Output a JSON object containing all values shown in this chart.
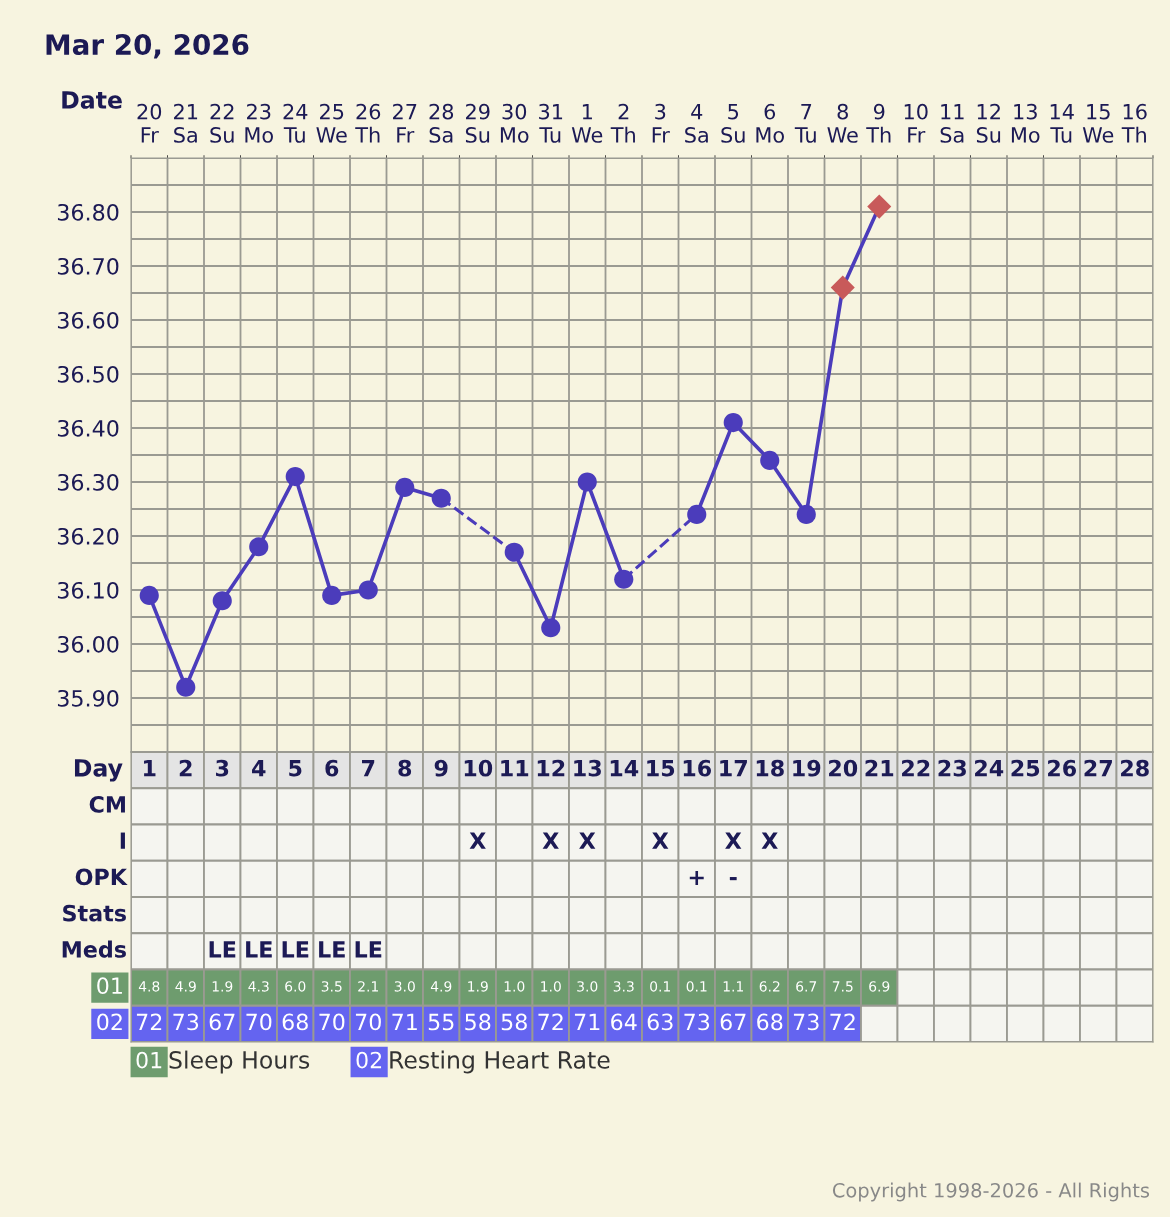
{
  "chart_data": [
    {
      "type": "line",
      "title": "Mar 20, 2026",
      "xlabel": "Date",
      "categories": [
        "20\nFr",
        "21\nSa",
        "22\nSu",
        "23\nMo",
        "24\nTu",
        "25\nWe",
        "26\nTh",
        "27\nFr",
        "28\nSa",
        "29\nSu",
        "30\nMo",
        "31\nTu",
        "1\nWe",
        "2\nTh",
        "3\nFr",
        "4\nSa",
        "5\nSu",
        "6\nMo",
        "7\nTu",
        "8\nWe",
        "9\nTh",
        "10\nFr",
        "11\nSa",
        "12\nSu",
        "13\nMo",
        "14\nTu",
        "15\nWe",
        "16\nTh"
      ],
      "series": [
        {
          "type": "line",
          "color": "#4b3cbb",
          "marker": "none",
          "line_style": "solid",
          "values": [
            36.09,
            35.92,
            36.08,
            36.18,
            36.31,
            36.09,
            36.1,
            36.29,
            36.27,
            null,
            36.17,
            36.03,
            36.3,
            36.12,
            null,
            36.24,
            36.41,
            36.34,
            36.24,
            36.66,
            36.81,
            null,
            null,
            null,
            null,
            null,
            null,
            null
          ]
        },
        {
          "type": "scatter",
          "color": "#4b3cbb",
          "marker": "circle",
          "values": [
            36.09,
            35.92,
            36.08,
            36.18,
            36.31,
            36.09,
            36.1,
            36.29,
            36.27,
            null,
            36.17,
            36.03,
            36.3,
            36.12,
            null,
            36.24,
            36.41,
            36.34,
            36.24,
            null,
            null,
            null,
            null,
            null,
            null,
            null,
            null,
            null
          ]
        },
        {
          "type": "scatter",
          "color": "#c85a5a",
          "marker": "diamond",
          "values": [
            null,
            null,
            null,
            null,
            null,
            null,
            null,
            null,
            null,
            null,
            null,
            null,
            null,
            null,
            null,
            null,
            null,
            null,
            null,
            36.66,
            36.81,
            null,
            null,
            null,
            null,
            null,
            null,
            null
          ]
        }
      ],
      "ylim": [
        35.8,
        36.9
      ],
      "yticks": [
        {
          "value": 35.8,
          "label": null
        },
        {
          "value": 35.85,
          "label": null
        },
        {
          "value": 35.9,
          "label": "35.90"
        },
        {
          "value": 35.95,
          "label": null
        },
        {
          "value": 36.0,
          "label": "36.00"
        },
        {
          "value": 36.05,
          "label": null
        },
        {
          "value": 36.1,
          "label": "36.10"
        },
        {
          "value": 36.15,
          "label": null
        },
        {
          "value": 36.2,
          "label": "36.20"
        },
        {
          "value": 36.25,
          "label": null
        },
        {
          "value": 36.3,
          "label": "36.30"
        },
        {
          "value": 36.35,
          "label": null
        },
        {
          "value": 36.4,
          "label": "36.40"
        },
        {
          "value": 36.45,
          "label": null
        },
        {
          "value": 36.5,
          "label": "36.50"
        },
        {
          "value": 36.55,
          "label": null
        },
        {
          "value": 36.6,
          "label": "36.60"
        },
        {
          "value": 36.65,
          "label": null
        },
        {
          "value": 36.7,
          "label": "36.70"
        },
        {
          "value": 36.75,
          "label": null
        },
        {
          "value": 36.8,
          "label": "36.80"
        },
        {
          "value": 36.85,
          "label": null
        },
        {
          "value": 36.9,
          "label": null
        }
      ],
      "grid": true,
      "legend": false,
      "annotations": [
        "Copyright 1998-2026 - All Rights"
      ]
    },
    {
      "type": "heatmap",
      "xlabel": "Day",
      "categories": [
        "1",
        "2",
        "3",
        "4",
        "5",
        "6",
        "7",
        "8",
        "9",
        "10",
        "11",
        "12",
        "13",
        "14",
        "15",
        "16",
        "17",
        "18",
        "19",
        "20",
        "21",
        "22",
        "23",
        "24",
        "25",
        "26",
        "27",
        "28"
      ],
      "y_categories": [
        "CM",
        "I",
        "OPK",
        "Stats",
        "Meds",
        "01",
        "02"
      ],
      "cells": [
        [
          null,
          null,
          null,
          null,
          null,
          null,
          null,
          null,
          null,
          null,
          null,
          null,
          null,
          null,
          null,
          null,
          null,
          null,
          null,
          null,
          null,
          null,
          null,
          null,
          null,
          null,
          null,
          null
        ],
        [
          null,
          null,
          null,
          null,
          null,
          null,
          null,
          null,
          null,
          null,
          null,
          null,
          null,
          null,
          null,
          null,
          null,
          null,
          null,
          null,
          null,
          null,
          null,
          null,
          null,
          null,
          null,
          null
        ],
        [
          null,
          null,
          null,
          null,
          null,
          null,
          null,
          null,
          null,
          null,
          null,
          null,
          null,
          null,
          null,
          null,
          null,
          null,
          null,
          null,
          null,
          null,
          null,
          null,
          null,
          null,
          null,
          null
        ],
        [
          null,
          null,
          null,
          null,
          null,
          null,
          null,
          null,
          null,
          null,
          null,
          null,
          null,
          null,
          null,
          null,
          null,
          null,
          null,
          null,
          null,
          null,
          null,
          null,
          null,
          null,
          null,
          null
        ],
        [
          null,
          null,
          null,
          null,
          null,
          null,
          null,
          null,
          null,
          null,
          null,
          null,
          null,
          null,
          null,
          null,
          null,
          null,
          null,
          null,
          null,
          null,
          null,
          null,
          null,
          null,
          null,
          null
        ],
        [
          null,
          null,
          null,
          null,
          null,
          null,
          null,
          null,
          null,
          null,
          null,
          null,
          null,
          null,
          null,
          null,
          null,
          null,
          null,
          null,
          null,
          null,
          null,
          null,
          null,
          null,
          null,
          null
        ],
        [
          null,
          null,
          null,
          null,
          null,
          null,
          null,
          null,
          null,
          null,
          null,
          null,
          null,
          null,
          null,
          null,
          null,
          null,
          null,
          null,
          null,
          null,
          null,
          null,
          null,
          null,
          null,
          null
        ]
      ],
      "cell_labels": [
        [
          null,
          null,
          null,
          null,
          null,
          null,
          null,
          null,
          null,
          null,
          null,
          null,
          null,
          null,
          null,
          null,
          null,
          null,
          null,
          null,
          null,
          null,
          null,
          null,
          null,
          null,
          null,
          null
        ],
        [
          null,
          null,
          null,
          null,
          null,
          null,
          null,
          null,
          null,
          "X",
          null,
          "X",
          "X",
          null,
          "X",
          null,
          "X",
          "X",
          null,
          null,
          null,
          null,
          null,
          null,
          null,
          null,
          null,
          null
        ],
        [
          null,
          null,
          null,
          null,
          null,
          null,
          null,
          null,
          null,
          null,
          null,
          null,
          null,
          null,
          null,
          "+",
          "-",
          null,
          null,
          null,
          null,
          null,
          null,
          null,
          null,
          null,
          null,
          null
        ],
        [
          null,
          null,
          null,
          null,
          null,
          null,
          null,
          null,
          null,
          null,
          null,
          null,
          null,
          null,
          null,
          null,
          null,
          null,
          null,
          null,
          null,
          null,
          null,
          null,
          null,
          null,
          null,
          null
        ],
        [
          null,
          null,
          "LE",
          "LE",
          "LE",
          "LE",
          "LE",
          null,
          null,
          null,
          null,
          null,
          null,
          null,
          null,
          null,
          null,
          null,
          null,
          null,
          null,
          null,
          null,
          null,
          null,
          null,
          null,
          null
        ],
        [
          "4.8",
          "4.9",
          "1.9",
          "4.3",
          "6.0",
          "3.5",
          "2.1",
          "3.0",
          "4.9",
          "1.9",
          "1.0",
          "1.0",
          "3.0",
          "3.3",
          "0.1",
          "0.1",
          "1.1",
          "6.2",
          "6.7",
          "7.5",
          "6.9",
          null,
          null,
          null,
          null,
          null,
          null,
          null
        ],
        [
          "72",
          "73",
          "67",
          "70",
          "68",
          "70",
          "70",
          "71",
          "55",
          "58",
          "58",
          "72",
          "71",
          "64",
          "63",
          "73",
          "67",
          "68",
          "73",
          "72",
          null,
          null,
          null,
          null,
          null,
          null,
          null,
          null
        ]
      ],
      "annotations": [
        "Sleep Hours",
        "Resting Heart Rate"
      ]
    }
  ]
}
